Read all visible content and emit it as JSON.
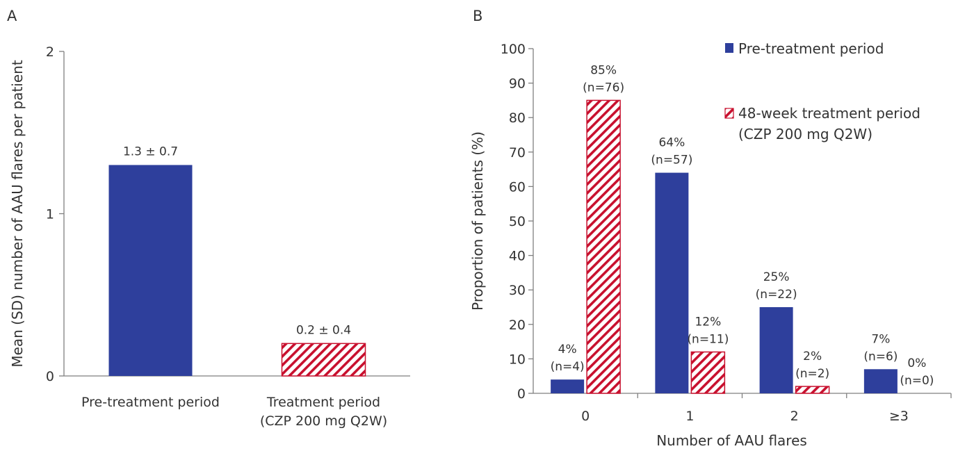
{
  "colors": {
    "pre_treatment": "#2e3f9c",
    "treatment_stripe": "#c8102e",
    "axis": "#7f7f7f",
    "text": "#333333"
  },
  "chart_data": [
    {
      "panel": "A",
      "type": "bar",
      "title": "",
      "ylabel": "Mean (SD) number of AAU flares per patient",
      "xlabel": "",
      "ylim": [
        0,
        2
      ],
      "yticks": [
        0,
        1,
        2
      ],
      "categories": [
        [
          "Pre-treatment period"
        ],
        [
          "Treatment period",
          "(CZP 200 mg Q2W)"
        ]
      ],
      "values": [
        1.3,
        0.2
      ],
      "labels": [
        "1.3 ± 0.7",
        "0.2 ± 0.4"
      ],
      "patterns": [
        "solid",
        "hatched"
      ],
      "grid": false,
      "legend": "none"
    },
    {
      "panel": "B",
      "type": "bar",
      "title": "",
      "ylabel": "Proportion of patients (%)",
      "xlabel": "Number of AAU flares",
      "ylim": [
        0,
        100
      ],
      "yticks": [
        0,
        10,
        20,
        30,
        40,
        50,
        60,
        70,
        80,
        90,
        100
      ],
      "categories": [
        "0",
        "1",
        "2",
        "≥3"
      ],
      "series": [
        {
          "name": "Pre-treatment period",
          "pattern": "solid",
          "values": [
            4,
            64,
            25,
            7
          ],
          "labels": [
            [
              "4%",
              "(n=4)"
            ],
            [
              "64%",
              "(n=57)"
            ],
            [
              "25%",
              "(n=22)"
            ],
            [
              "7%",
              "(n=6)"
            ]
          ]
        },
        {
          "name": "48-week treatment period",
          "name_line2": "(CZP 200 mg Q2W)",
          "pattern": "hatched",
          "values": [
            85,
            12,
            2,
            0
          ],
          "labels": [
            [
              "85%",
              "(n=76)"
            ],
            [
              "12%",
              "(n=11)"
            ],
            [
              "2%",
              "(n=2)"
            ],
            [
              "0%",
              "(n=0)"
            ]
          ]
        }
      ],
      "grid": false,
      "legend": "top-right"
    }
  ]
}
